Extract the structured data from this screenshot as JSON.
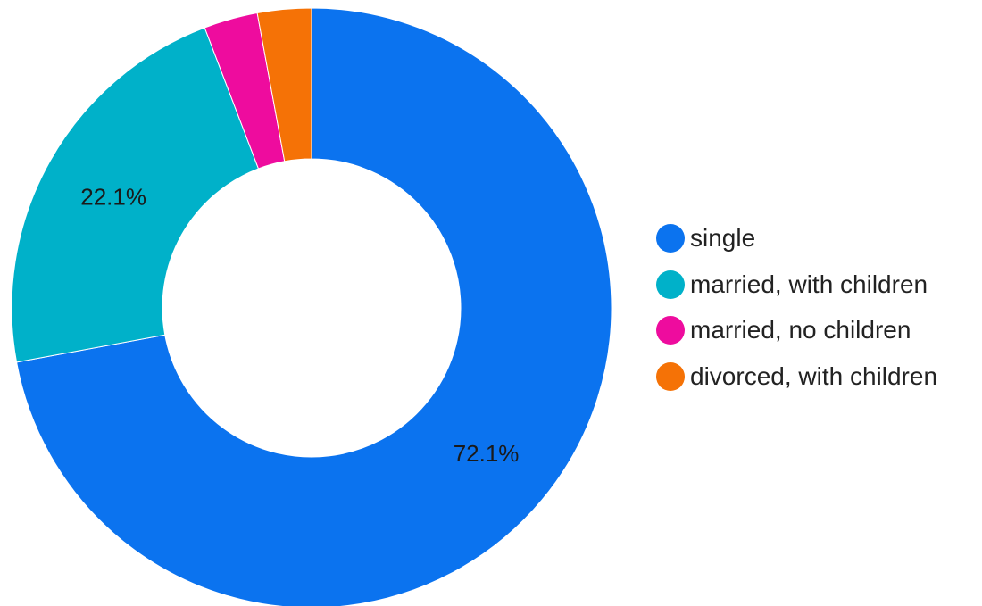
{
  "chart_data": {
    "type": "pie",
    "donut": true,
    "categories": [
      "single",
      "married, with children",
      "married, no children",
      "divorced, with children"
    ],
    "values": [
      72.1,
      22.1,
      2.9,
      2.9
    ],
    "data_labels": [
      "72.1%",
      "22.1%",
      "",
      ""
    ],
    "colors": [
      "#0b73ef",
      "#00b1c9",
      "#ee0c9e",
      "#f57206"
    ],
    "legend": {
      "position": "right",
      "items": [
        {
          "label": "single",
          "color": "#0b73ef"
        },
        {
          "label": "married, with children",
          "color": "#00b1c9"
        },
        {
          "label": "married, no children",
          "color": "#ee0c9e"
        },
        {
          "label": "divorced, with children",
          "color": "#f57206"
        }
      ]
    },
    "title": "",
    "start_angle": "top",
    "direction": "clockwise"
  }
}
